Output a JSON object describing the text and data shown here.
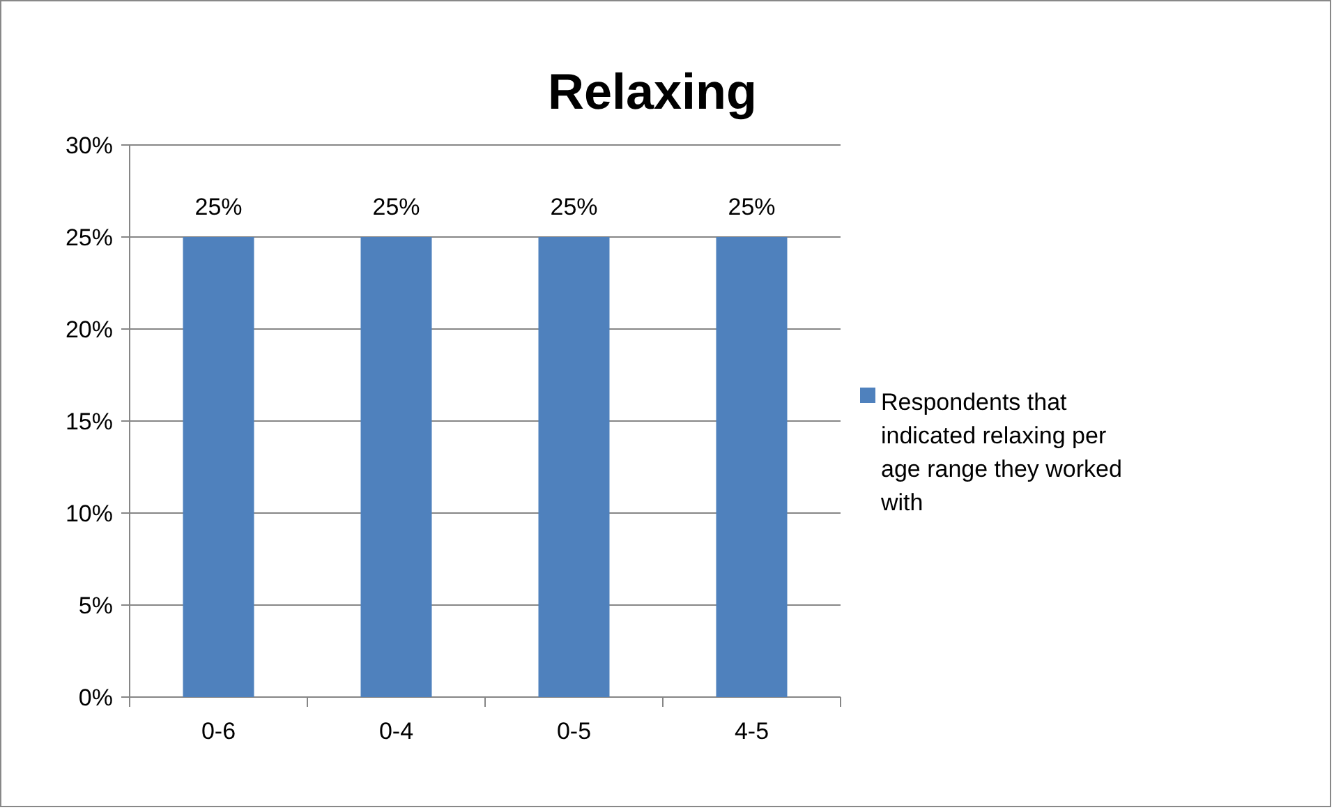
{
  "chart_data": {
    "type": "bar",
    "title": "Relaxing",
    "categories": [
      "0-6",
      "0-4",
      "0-5",
      "4-5"
    ],
    "series": [
      {
        "name": "Respondents that indicated relaxing per age range they worked with",
        "color": "#4f81bd",
        "values": [
          25,
          25,
          25,
          25
        ],
        "value_labels": [
          "25%",
          "25%",
          "25%",
          "25%"
        ]
      }
    ],
    "ylim": [
      0,
      30
    ],
    "yticks": [
      {
        "value": 0,
        "label": "0%"
      },
      {
        "value": 5,
        "label": "5%"
      },
      {
        "value": 10,
        "label": "10%"
      },
      {
        "value": 15,
        "label": "15%"
      },
      {
        "value": 20,
        "label": "20%"
      },
      {
        "value": 25,
        "label": "25%"
      },
      {
        "value": 30,
        "label": "30%"
      }
    ],
    "grid": "y",
    "legend": "right"
  }
}
